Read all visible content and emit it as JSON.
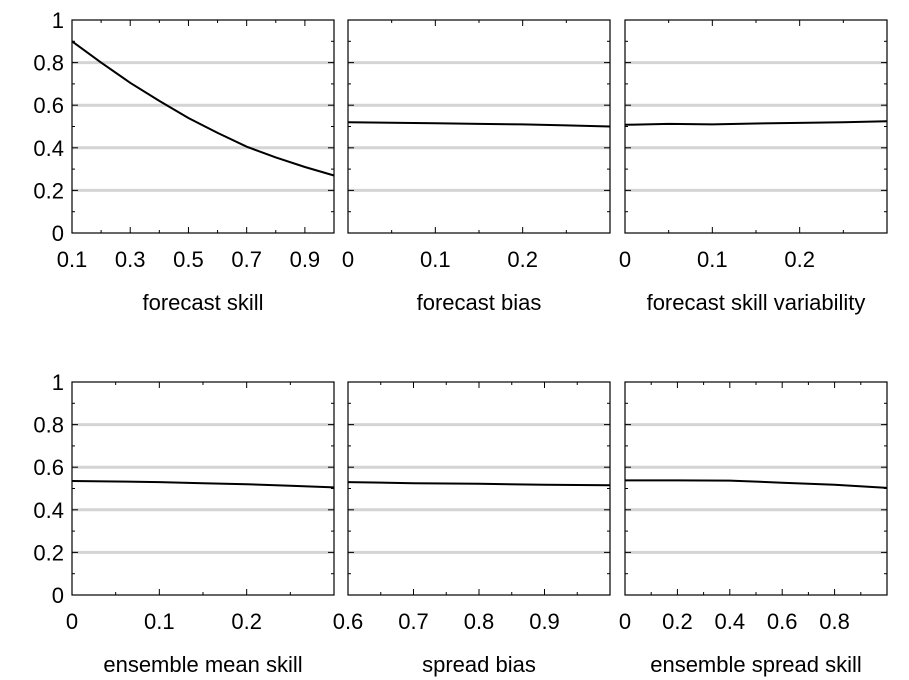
{
  "chart_data": [
    {
      "type": "line",
      "xlabel": "forecast skill",
      "xlim": [
        0.1,
        1.0
      ],
      "xticks": [
        0.1,
        0.3,
        0.5,
        0.7,
        0.9
      ],
      "xtick_labels": [
        "0.1",
        "0.3",
        "0.5",
        "0.7",
        "0.9"
      ],
      "ylim": [
        0,
        1
      ],
      "yticks": [
        0,
        0.2,
        0.4,
        0.6,
        0.8,
        1
      ],
      "ytick_labels": [
        "0",
        "0.2",
        "0.4",
        "0.6",
        "0.8",
        "1"
      ],
      "grid": "horizontal",
      "x": [
        0.1,
        0.2,
        0.3,
        0.4,
        0.5,
        0.6,
        0.7,
        0.8,
        0.9,
        1.0
      ],
      "y": [
        0.9,
        0.8,
        0.705,
        0.62,
        0.54,
        0.47,
        0.405,
        0.355,
        0.31,
        0.27
      ]
    },
    {
      "type": "line",
      "xlabel": "forecast bias",
      "xlim": [
        0,
        0.3
      ],
      "xticks": [
        0,
        0.1,
        0.2
      ],
      "xtick_labels": [
        "0",
        "0.1",
        "0.2"
      ],
      "ylim": [
        0,
        1
      ],
      "yticks": [
        0,
        0.2,
        0.4,
        0.6,
        0.8,
        1
      ],
      "ytick_labels": [],
      "grid": "horizontal",
      "x": [
        0,
        0.05,
        0.1,
        0.15,
        0.2,
        0.25,
        0.3
      ],
      "y": [
        0.52,
        0.518,
        0.515,
        0.512,
        0.51,
        0.505,
        0.5
      ]
    },
    {
      "type": "line",
      "xlabel": "forecast skill variability",
      "xlim": [
        0,
        0.3
      ],
      "xticks": [
        0,
        0.1,
        0.2
      ],
      "xtick_labels": [
        "0",
        "0.1",
        "0.2"
      ],
      "ylim": [
        0,
        1
      ],
      "yticks": [
        0,
        0.2,
        0.4,
        0.6,
        0.8,
        1
      ],
      "ytick_labels": [],
      "grid": "horizontal",
      "x": [
        0,
        0.05,
        0.1,
        0.15,
        0.2,
        0.25,
        0.3
      ],
      "y": [
        0.508,
        0.512,
        0.51,
        0.514,
        0.517,
        0.52,
        0.525
      ]
    },
    {
      "type": "line",
      "xlabel": "ensemble mean skill",
      "xlim": [
        0,
        0.3
      ],
      "xticks": [
        0,
        0.1,
        0.2
      ],
      "xtick_labels": [
        "0",
        "0.1",
        "0.2"
      ],
      "ylim": [
        0,
        1
      ],
      "yticks": [
        0,
        0.2,
        0.4,
        0.6,
        0.8,
        1
      ],
      "ytick_labels": [
        "0",
        "0.2",
        "0.4",
        "0.6",
        "0.8",
        "1"
      ],
      "grid": "horizontal",
      "x": [
        0,
        0.05,
        0.1,
        0.15,
        0.2,
        0.25,
        0.3
      ],
      "y": [
        0.535,
        0.533,
        0.53,
        0.525,
        0.52,
        0.513,
        0.505
      ]
    },
    {
      "type": "line",
      "xlabel": "spread bias",
      "xlim": [
        0.6,
        1.0
      ],
      "xticks": [
        0.6,
        0.7,
        0.8,
        0.9
      ],
      "xtick_labels": [
        "0.6",
        "0.7",
        "0.8",
        "0.9"
      ],
      "ylim": [
        0,
        1
      ],
      "yticks": [
        0,
        0.2,
        0.4,
        0.6,
        0.8,
        1
      ],
      "ytick_labels": [],
      "grid": "horizontal",
      "x": [
        0.6,
        0.7,
        0.8,
        0.9,
        1.0
      ],
      "y": [
        0.53,
        0.525,
        0.522,
        0.518,
        0.515
      ]
    },
    {
      "type": "line",
      "xlabel": "ensemble spread skill",
      "xlim": [
        0,
        1.0
      ],
      "xticks": [
        0,
        0.2,
        0.4,
        0.6,
        0.8
      ],
      "xtick_labels": [
        "0",
        "0.2",
        "0.4",
        "0.6",
        "0.8"
      ],
      "ylim": [
        0,
        1
      ],
      "yticks": [
        0,
        0.2,
        0.4,
        0.6,
        0.8,
        1
      ],
      "ytick_labels": [],
      "grid": "horizontal",
      "x": [
        0,
        0.2,
        0.4,
        0.6,
        0.8,
        1.0
      ],
      "y": [
        0.538,
        0.538,
        0.537,
        0.527,
        0.518,
        0.503
      ]
    }
  ]
}
